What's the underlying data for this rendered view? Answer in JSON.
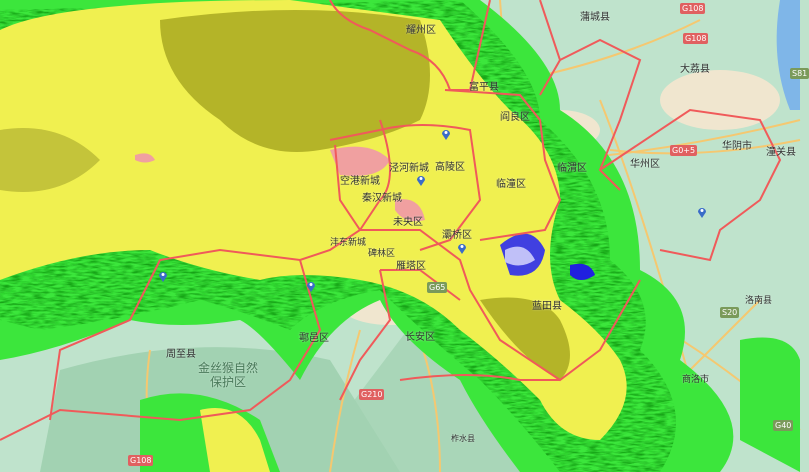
{
  "map": {
    "layer": "weather-radar",
    "colors": {
      "base": "#bfe3cc",
      "urban": "#f0e6cf",
      "road": "#f5c870",
      "boundary": "#f05a5a",
      "radar_light_green": "#3ce63c",
      "radar_green": "#14a014",
      "radar_yellow": "#f0f050",
      "radar_olive": "#b4b428",
      "radar_pink": "#f0a0a0",
      "radar_blue": "#2020e0"
    },
    "places": [
      {
        "id": "yaozhou",
        "name": "耀州区"
      },
      {
        "id": "fuping",
        "name": "富平县"
      },
      {
        "id": "yanliang",
        "name": "阎良区"
      },
      {
        "id": "jinghe",
        "name": "泾河新城"
      },
      {
        "id": "gaoling",
        "name": "高陵区"
      },
      {
        "id": "konggang",
        "name": "空港新城"
      },
      {
        "id": "qinhan",
        "name": "秦汉新城"
      },
      {
        "id": "lintong",
        "name": "临潼区"
      },
      {
        "id": "linwei",
        "name": "临渭区"
      },
      {
        "id": "weiyang",
        "name": "未央区"
      },
      {
        "id": "baqiao",
        "name": "灞桥区"
      },
      {
        "id": "yanta",
        "name": "雁塔区"
      },
      {
        "id": "changan",
        "name": "长安区"
      },
      {
        "id": "huyi",
        "name": "鄠邑区"
      },
      {
        "id": "zhouzhi",
        "name": "周至县"
      },
      {
        "id": "lantian",
        "name": "蓝田县"
      },
      {
        "id": "huazhou",
        "name": "华州区"
      },
      {
        "id": "huayin",
        "name": "华阴市"
      },
      {
        "id": "tongguan",
        "name": "潼关县"
      },
      {
        "id": "dali",
        "name": "大荔县"
      },
      {
        "id": "pucheng",
        "name": "蒲城县"
      },
      {
        "id": "luonan",
        "name": "洛南县"
      },
      {
        "id": "shangluo",
        "name": "商洛市"
      },
      {
        "id": "zhashui",
        "name": "柞水县"
      },
      {
        "id": "fengdong",
        "name": "沣东新城"
      },
      {
        "id": "beilin",
        "name": "碑林区"
      }
    ],
    "reserve": {
      "line1": "金丝猴自然",
      "line2": "保护区"
    },
    "roads": [
      "G108",
      "G108",
      "G0+5",
      "G65",
      "G210",
      "S20",
      "G40",
      "G108",
      "S81"
    ]
  }
}
